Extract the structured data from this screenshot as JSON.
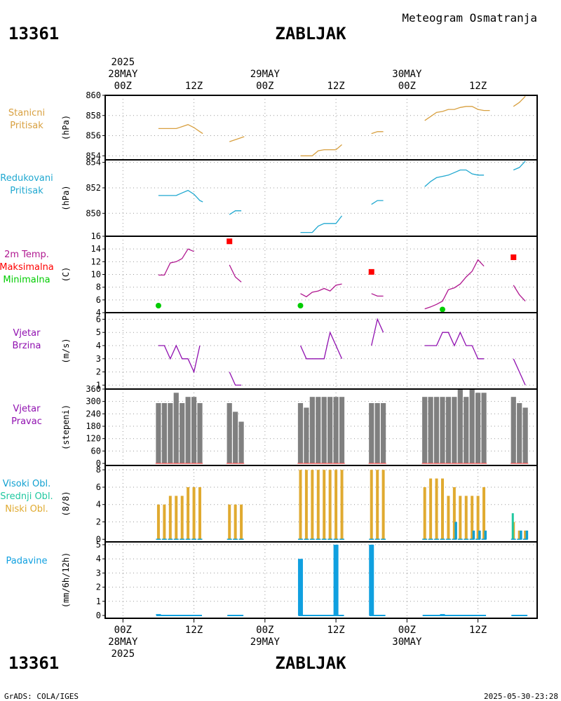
{
  "header": {
    "station_id": "13361",
    "station_name": "ZABLJAK",
    "product": "Meteogram Osmatranja"
  },
  "footer": {
    "credit": "GrADS: COLA/IGES",
    "timestamp": "2025-05-30-23:28"
  },
  "time_axis": {
    "year_label": "2025",
    "date_labels": [
      "28MAY",
      "29MAY",
      "30MAY"
    ],
    "tick_labels": [
      "00Z",
      "12Z",
      "00Z",
      "12Z",
      "00Z",
      "12Z"
    ],
    "tick_hours": [
      0,
      12,
      24,
      36,
      48,
      60
    ],
    "range_hours": [
      -3,
      70
    ]
  },
  "colors": {
    "pressure_station": "#d8a040",
    "pressure_reduced": "#20a8d0",
    "temperature": "#b01890",
    "tmax": "#ff0000",
    "tmin": "#00cc00",
    "wind_speed": "#9010b0",
    "wind_dir_bars": "#808080",
    "cloud_low": "#e0aa30",
    "cloud_mid": "#20c8a0",
    "cloud_high": "#10a0d0",
    "precip": "#10a0e0",
    "grid": "#999999"
  },
  "chart_data": [
    {
      "type": "line",
      "id": "station_pressure",
      "labels": [
        "Stanicni",
        "Pritisak"
      ],
      "unit": "(hPa)",
      "ylim": [
        853.6,
        860
      ],
      "yticks": [
        854,
        856,
        858,
        860
      ],
      "series": [
        {
          "name": "Stanicni Pritisak",
          "segments": [
            [
              [
                6,
                856.7
              ],
              [
                9,
                856.7
              ],
              [
                10,
                856.9
              ],
              [
                11,
                857.1
              ],
              [
                12,
                856.8
              ],
              [
                13,
                856.4
              ],
              [
                13.5,
                856.2
              ]
            ],
            [
              [
                18,
                855.4
              ],
              [
                20,
                855.8
              ],
              [
                20.5,
                855.9
              ]
            ],
            [
              [
                30,
                854.0
              ],
              [
                31,
                854.0
              ],
              [
                32,
                854.0
              ],
              [
                33,
                854.5
              ],
              [
                34,
                854.6
              ],
              [
                35,
                854.6
              ],
              [
                36,
                854.6
              ],
              [
                37,
                855.1
              ]
            ],
            [
              [
                42,
                856.2
              ],
              [
                43,
                856.4
              ],
              [
                44,
                856.4
              ]
            ],
            [
              [
                51,
                857.5
              ],
              [
                52,
                857.9
              ],
              [
                53,
                858.3
              ],
              [
                54,
                858.4
              ],
              [
                55,
                858.6
              ],
              [
                56,
                858.6
              ],
              [
                57,
                858.8
              ],
              [
                58,
                858.9
              ],
              [
                59,
                858.9
              ],
              [
                60,
                858.6
              ],
              [
                61,
                858.5
              ],
              [
                62,
                858.5
              ]
            ],
            [
              [
                66,
                858.9
              ],
              [
                67,
                859.3
              ],
              [
                68,
                859.9
              ]
            ]
          ]
        }
      ]
    },
    {
      "type": "line",
      "id": "reduced_pressure",
      "labels": [
        "Redukovani",
        "Pritisak"
      ],
      "unit": "(hPa)",
      "ylim": [
        848.2,
        854.2
      ],
      "yticks": [
        850,
        852,
        854
      ],
      "series": [
        {
          "name": "Redukovani Pritisak",
          "segments": [
            [
              [
                6,
                851.4
              ],
              [
                9,
                851.4
              ],
              [
                10,
                851.6
              ],
              [
                11,
                851.8
              ],
              [
                12,
                851.5
              ],
              [
                13,
                851.0
              ],
              [
                13.5,
                850.9
              ]
            ],
            [
              [
                18,
                849.9
              ],
              [
                19,
                850.2
              ],
              [
                20,
                850.2
              ]
            ],
            [
              [
                30,
                848.5
              ],
              [
                31,
                848.5
              ],
              [
                32,
                848.5
              ],
              [
                33,
                849.0
              ],
              [
                34,
                849.2
              ],
              [
                35,
                849.2
              ],
              [
                36,
                849.2
              ],
              [
                37,
                849.8
              ]
            ],
            [
              [
                42,
                850.7
              ],
              [
                43,
                851.0
              ],
              [
                44,
                851.0
              ]
            ],
            [
              [
                51,
                852.1
              ],
              [
                52,
                852.5
              ],
              [
                53,
                852.8
              ],
              [
                54,
                852.9
              ],
              [
                55,
                853.0
              ],
              [
                56,
                853.2
              ],
              [
                57,
                853.4
              ],
              [
                58,
                853.4
              ],
              [
                59,
                853.1
              ],
              [
                60,
                853.0
              ],
              [
                61,
                853.0
              ]
            ],
            [
              [
                66,
                853.4
              ],
              [
                67,
                853.6
              ],
              [
                68,
                854.1
              ]
            ]
          ]
        }
      ]
    },
    {
      "type": "line",
      "id": "temperature",
      "labels": [
        "2m Temp.",
        "Maksimalna",
        "Minimalna"
      ],
      "unit": "(C)",
      "ylim": [
        4,
        16
      ],
      "yticks": [
        4,
        6,
        8,
        10,
        12,
        14,
        16
      ],
      "series": [
        {
          "name": "2m Temp.",
          "segments": [
            [
              [
                6,
                9.9
              ],
              [
                7,
                9.9
              ],
              [
                8,
                11.8
              ],
              [
                9,
                12.0
              ],
              [
                10,
                12.5
              ],
              [
                11,
                14.0
              ],
              [
                12,
                13.6
              ]
            ],
            [
              [
                18,
                11.5
              ],
              [
                19,
                9.6
              ],
              [
                20,
                8.8
              ]
            ],
            [
              [
                30,
                7.0
              ],
              [
                31,
                6.5
              ],
              [
                32,
                7.2
              ],
              [
                33,
                7.4
              ],
              [
                34,
                7.8
              ],
              [
                35,
                7.4
              ],
              [
                36,
                8.3
              ],
              [
                37,
                8.5
              ]
            ],
            [
              [
                42,
                7.0
              ],
              [
                43,
                6.6
              ],
              [
                44,
                6.6
              ]
            ],
            [
              [
                51,
                4.6
              ],
              [
                52,
                4.9
              ],
              [
                53,
                5.3
              ],
              [
                54,
                5.8
              ],
              [
                55,
                7.6
              ],
              [
                56,
                7.9
              ],
              [
                57,
                8.5
              ],
              [
                58,
                9.6
              ],
              [
                59,
                10.5
              ],
              [
                60,
                12.3
              ],
              [
                61,
                11.3
              ]
            ],
            [
              [
                66,
                8.3
              ],
              [
                67,
                6.8
              ],
              [
                68,
                5.8
              ]
            ]
          ]
        },
        {
          "name": "Maksimalna",
          "points": [
            [
              18,
              15.2
            ],
            [
              42,
              10.4
            ],
            [
              66,
              12.7
            ]
          ]
        },
        {
          "name": "Minimalna",
          "points": [
            [
              6,
              5.1
            ],
            [
              30,
              5.1
            ],
            [
              54,
              4.5
            ]
          ]
        }
      ]
    },
    {
      "type": "line",
      "id": "wind_speed",
      "labels": [
        "Vjetar",
        "Brzina"
      ],
      "unit": "(m/s)",
      "ylim": [
        0.7,
        6.5
      ],
      "yticks": [
        1,
        2,
        3,
        4,
        5,
        6
      ],
      "series": [
        {
          "name": "Vjetar Brzina",
          "segments": [
            [
              [
                6,
                4
              ],
              [
                7,
                4
              ],
              [
                8,
                3
              ],
              [
                9,
                4
              ],
              [
                10,
                3
              ],
              [
                11,
                3
              ],
              [
                12,
                2
              ],
              [
                13,
                4
              ]
            ],
            [
              [
                18,
                2
              ],
              [
                19,
                1
              ],
              [
                20,
                1
              ]
            ],
            [
              [
                30,
                4
              ],
              [
                31,
                3
              ],
              [
                32,
                3
              ],
              [
                33,
                3
              ],
              [
                34,
                3
              ],
              [
                35,
                5
              ],
              [
                36,
                4
              ],
              [
                37,
                3
              ]
            ],
            [
              [
                42,
                4
              ],
              [
                43,
                6
              ],
              [
                44,
                5
              ]
            ],
            [
              [
                51,
                4
              ],
              [
                52,
                4
              ],
              [
                53,
                4
              ],
              [
                54,
                5
              ],
              [
                55,
                5
              ],
              [
                56,
                4
              ],
              [
                57,
                5
              ],
              [
                58,
                4
              ],
              [
                59,
                4
              ],
              [
                60,
                3
              ],
              [
                61,
                3
              ]
            ],
            [
              [
                66,
                3
              ],
              [
                67,
                2
              ],
              [
                68,
                1
              ]
            ]
          ]
        }
      ]
    },
    {
      "type": "bar",
      "id": "wind_direction",
      "labels": [
        "Vjetar",
        "Pravac"
      ],
      "unit": "(stepeni)",
      "ylim": [
        -10,
        360
      ],
      "yticks": [
        0,
        60,
        120,
        180,
        240,
        300,
        360
      ],
      "x": [
        6,
        7,
        8,
        9,
        10,
        11,
        12,
        13,
        18,
        19,
        20,
        30,
        31,
        32,
        33,
        34,
        35,
        36,
        37,
        42,
        43,
        44,
        51,
        52,
        53,
        54,
        55,
        56,
        57,
        58,
        59,
        60,
        61,
        66,
        67,
        68
      ],
      "values": [
        292,
        292,
        292,
        342,
        292,
        322,
        322,
        292,
        292,
        250,
        202,
        292,
        270,
        322,
        322,
        322,
        322,
        322,
        322,
        292,
        292,
        292,
        322,
        322,
        322,
        322,
        322,
        322,
        362,
        322,
        362,
        342,
        342,
        322,
        292,
        270
      ]
    },
    {
      "type": "bar",
      "id": "clouds",
      "labels": [
        "Visoki Obl.",
        "Srednji Obl.",
        "Niski Obl."
      ],
      "unit": "(8/8)",
      "ylim": [
        -0.3,
        8.5
      ],
      "yticks": [
        0,
        2,
        4,
        6,
        8
      ],
      "x": [
        6,
        7,
        8,
        9,
        10,
        11,
        12,
        13,
        18,
        19,
        20,
        30,
        31,
        32,
        33,
        34,
        35,
        36,
        37,
        42,
        43,
        44,
        51,
        52,
        53,
        54,
        55,
        56,
        57,
        58,
        59,
        60,
        61,
        66,
        67,
        68
      ],
      "series": [
        {
          "name": "Niski Obl.",
          "values": [
            4,
            4,
            5,
            5,
            5,
            6,
            6,
            6,
            4,
            4,
            4,
            8,
            8,
            8,
            8,
            8,
            8,
            8,
            8,
            8,
            8,
            8,
            6,
            7,
            7,
            7,
            5,
            6,
            5,
            5,
            5,
            5,
            6,
            2,
            1,
            1
          ]
        },
        {
          "name": "Srednji Obl.",
          "values": [
            0,
            0,
            0,
            0,
            0,
            0,
            0,
            0,
            0,
            0,
            0,
            0,
            0,
            0,
            0,
            0,
            0,
            0,
            0,
            0,
            0,
            0,
            0,
            0,
            0,
            0,
            0,
            0,
            0,
            0,
            0,
            0,
            0,
            3,
            0,
            0
          ]
        },
        {
          "name": "Visoki Obl.",
          "values": [
            0,
            0,
            0,
            0,
            0,
            0,
            0,
            0,
            0,
            0,
            0,
            0,
            0,
            0,
            0,
            0,
            0,
            0,
            0,
            0,
            0,
            0,
            0,
            0,
            0,
            0,
            0,
            2,
            0,
            0,
            1,
            1,
            1,
            0,
            1,
            1
          ]
        }
      ]
    },
    {
      "type": "bar",
      "id": "precipitation",
      "labels": [
        "Padavine"
      ],
      "unit": "(mm/6h/12h)",
      "ylim": [
        -0.2,
        5.2
      ],
      "yticks": [
        0,
        1,
        2,
        3,
        4,
        5
      ],
      "x": [
        6,
        30,
        36,
        42,
        54
      ],
      "values": [
        0.1,
        4.0,
        5.0,
        5.0,
        0.1
      ]
    }
  ]
}
